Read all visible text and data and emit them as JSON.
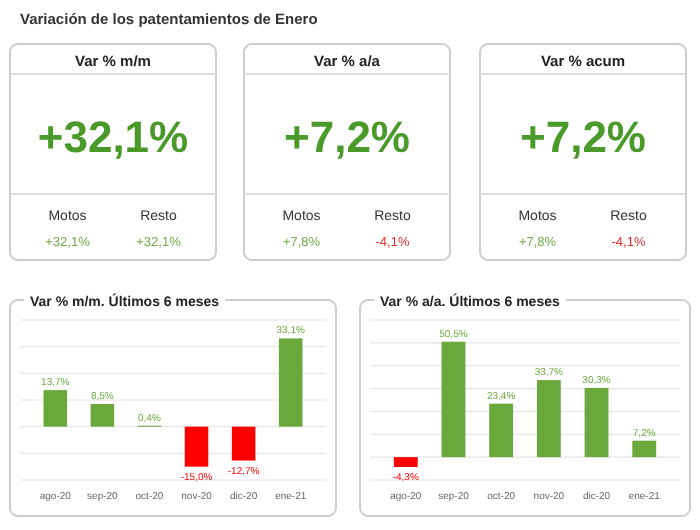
{
  "chart_data": [
    {
      "type": "other",
      "title": "Variación de los patentamientos de Enero"
    },
    {
      "type": "other",
      "title": "Var % m/m",
      "annotations": [
        "+32,1%"
      ],
      "categories": [
        "Motos",
        "Resto"
      ],
      "values": [
        32.1,
        32.1
      ],
      "value_labels": [
        "+32,1%",
        "+32,1%"
      ]
    },
    {
      "type": "other",
      "title": "Var % a/a",
      "annotations": [
        "+7,2%"
      ],
      "categories": [
        "Motos",
        "Resto"
      ],
      "values": [
        7.8,
        -4.1
      ],
      "value_labels": [
        "+7,8%",
        "-4,1%"
      ]
    },
    {
      "type": "other",
      "title": "Var % acum",
      "annotations": [
        "+7,2%"
      ],
      "categories": [
        "Motos",
        "Resto"
      ],
      "values": [
        7.8,
        -4.1
      ],
      "value_labels": [
        "+7,8%",
        "-4,1%"
      ]
    },
    {
      "type": "bar",
      "title": "Var % m/m. Últimos 6 meses",
      "categories": [
        "ago-20",
        "sep-20",
        "oct-20",
        "nov-20",
        "dic-20",
        "ene-21"
      ],
      "values": [
        13.7,
        8.5,
        0.4,
        -15.0,
        -12.7,
        33.1
      ],
      "colors": [
        "#6aa83c",
        "#6aa83c",
        "#6aa83c",
        "#ff0000",
        "#ff0000",
        "#6aa83c"
      ],
      "value_labels": [
        "13,7%",
        "8,5%",
        "0,4%",
        "-15,0%",
        "-12,7%",
        "33,1%"
      ],
      "ylim": [
        -20,
        40
      ],
      "yticks": [
        {
          "value": -20,
          "label": null
        },
        {
          "value": -10,
          "label": null
        },
        {
          "value": 0,
          "label": null
        },
        {
          "value": 10,
          "label": null
        },
        {
          "value": 20,
          "label": null
        },
        {
          "value": 30,
          "label": null
        },
        {
          "value": 40,
          "label": null
        }
      ],
      "grid": "y",
      "tick_labels": "x"
    },
    {
      "type": "bar",
      "title": "Var % a/a. Últimos 6 meses",
      "categories": [
        "ago-20",
        "sep-20",
        "oct-20",
        "nov-20",
        "dic-20",
        "ene-21"
      ],
      "values": [
        -4.3,
        50.5,
        23.4,
        33.7,
        30.3,
        7.2
      ],
      "colors": [
        "#ff0000",
        "#6aa83c",
        "#6aa83c",
        "#6aa83c",
        "#6aa83c",
        "#6aa83c"
      ],
      "value_labels": [
        "-4,3%",
        "50,5%",
        "23,4%",
        "33,7%",
        "30,3%",
        "7,2%"
      ],
      "ylim": [
        -10,
        60
      ],
      "yticks": [
        {
          "value": -10,
          "label": null
        },
        {
          "value": 0,
          "label": null
        },
        {
          "value": 10,
          "label": null
        },
        {
          "value": 20,
          "label": null
        },
        {
          "value": 30,
          "label": null
        },
        {
          "value": 40,
          "label": null
        },
        {
          "value": 50,
          "label": null
        },
        {
          "value": 60,
          "label": null
        }
      ],
      "grid": "y",
      "tick_labels": "x"
    }
  ]
}
